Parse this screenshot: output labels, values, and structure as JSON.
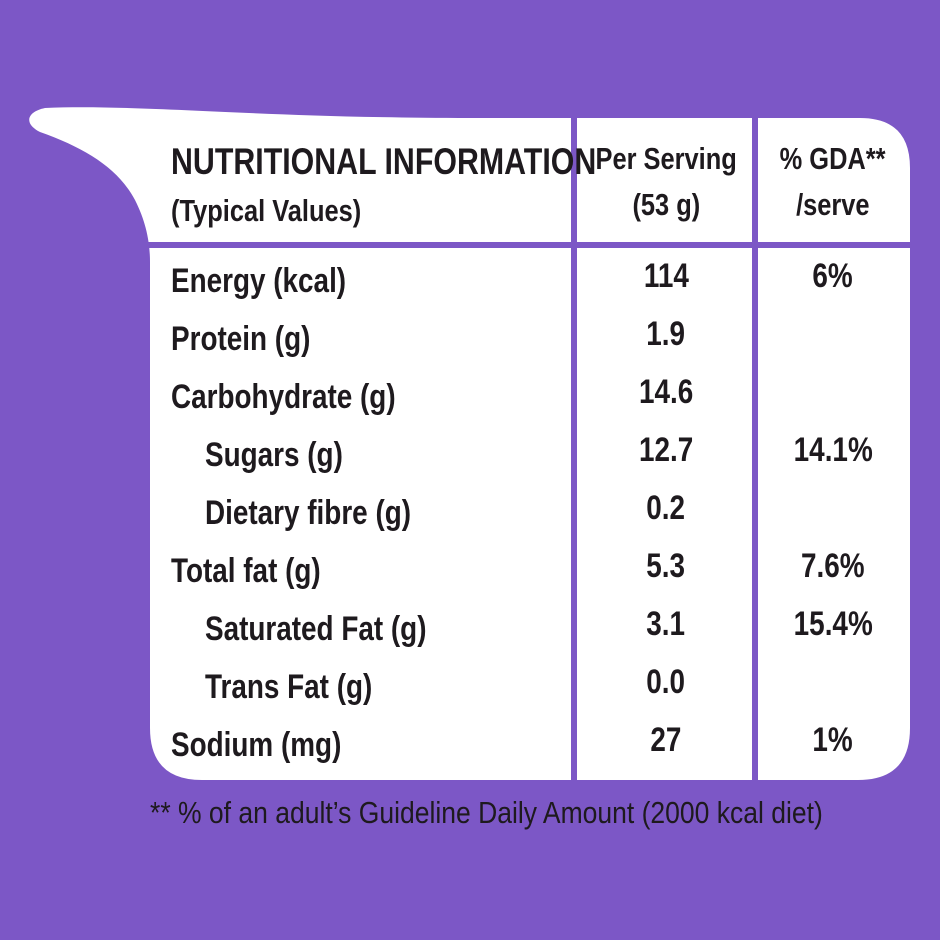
{
  "colors": {
    "background": "#7c57c6",
    "panel": "#ffffff",
    "divider": "#7c57c6",
    "text": "#1e1a1e"
  },
  "table": {
    "title": "NUTRITIONAL INFORMATION",
    "subtitle": "(Typical Values)",
    "col_serving_line1": "Per Serving",
    "col_serving_line2": "(53 g)",
    "col_gda_line1": "% GDA**",
    "col_gda_line2": "/serve",
    "rows": [
      {
        "label": "Energy (kcal)",
        "serving": "114",
        "gda": "6%"
      },
      {
        "label": "Protein (g)",
        "serving": "1.9",
        "gda": ""
      },
      {
        "label": "Carbohydrate (g)",
        "serving": "14.6",
        "gda": ""
      },
      {
        "label": "Sugars (g)",
        "serving": "12.7",
        "gda": "14.1%"
      },
      {
        "label": "Dietary fibre (g)",
        "serving": "0.2",
        "gda": ""
      },
      {
        "label": "Total fat (g)",
        "serving": "5.3",
        "gda": "7.6%"
      },
      {
        "label": "Saturated Fat (g)",
        "serving": "3.1",
        "gda": "15.4%"
      },
      {
        "label": "Trans Fat (g)",
        "serving": "0.0",
        "gda": ""
      },
      {
        "label": "Sodium (mg)",
        "serving": "27",
        "gda": "1%"
      }
    ]
  },
  "footnote": "** % of an adult’s Guideline Daily Amount (2000 kcal diet)"
}
